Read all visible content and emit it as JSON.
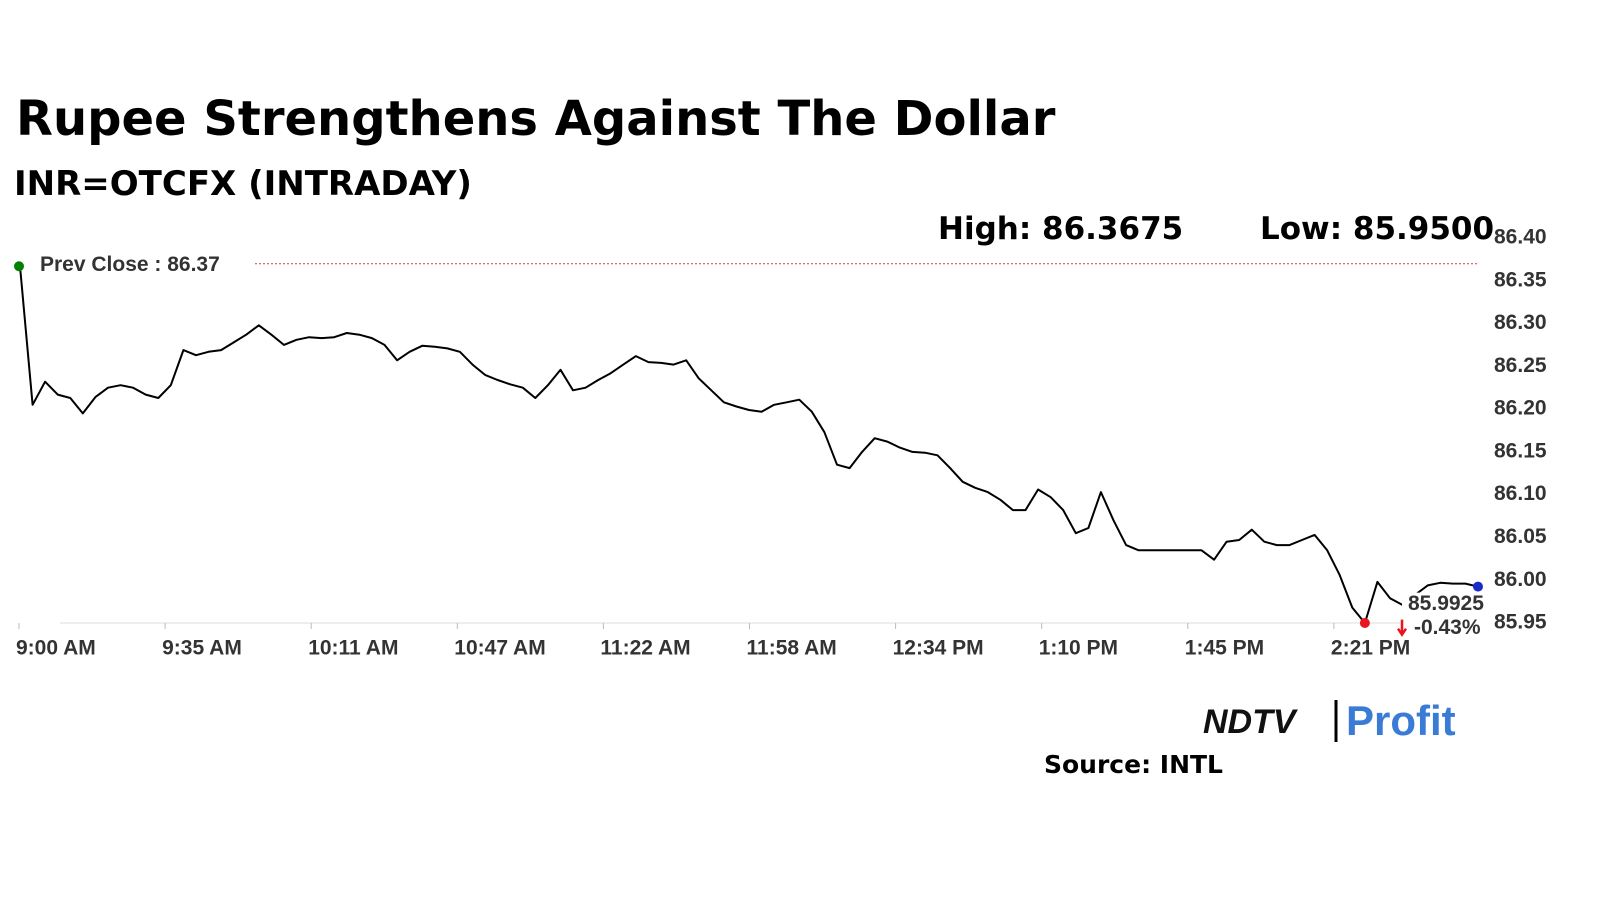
{
  "chart_data": {
    "type": "line",
    "title": "Rupee Strengthens Against The Dollar",
    "subtitle": "INR=OTCFX (INTRADAY)",
    "high_label": "High: 86.3675",
    "low_label": "Low: 85.9500",
    "prev_close": {
      "value": 86.37,
      "label": "Prev Close : 86.37"
    },
    "last_label": "85.9925",
    "change_label": "-0.43%",
    "source": "Source: INTL",
    "logo": {
      "left": "NDTV",
      "right": "Profit"
    },
    "xticks": [
      "9:00 AM",
      "9:35 AM",
      "10:11 AM",
      "10:47 AM",
      "11:22 AM",
      "11:58 AM",
      "12:34 PM",
      "1:10 PM",
      "1:45 PM",
      "2:21 PM"
    ],
    "series": [
      {
        "color": "#000000",
        "values": [
          86.367,
          86.205,
          86.232,
          86.217,
          86.213,
          86.195,
          86.214,
          86.225,
          86.228,
          86.225,
          86.217,
          86.213,
          86.228,
          86.269,
          86.263,
          86.267,
          86.269,
          86.278,
          86.287,
          86.298,
          86.287,
          86.275,
          86.281,
          86.284,
          86.283,
          86.284,
          86.289,
          86.287,
          86.283,
          86.275,
          86.257,
          86.267,
          86.274,
          86.273,
          86.271,
          86.267,
          86.252,
          86.24,
          86.234,
          86.229,
          86.225,
          86.213,
          86.228,
          86.246,
          86.222,
          86.225,
          86.234,
          86.242,
          86.252,
          86.262,
          86.255,
          86.254,
          86.252,
          86.257,
          86.236,
          86.222,
          86.208,
          86.203,
          86.199,
          86.197,
          86.205,
          86.208,
          86.211,
          86.197,
          86.173,
          86.135,
          86.131,
          86.15,
          86.166,
          86.162,
          86.155,
          86.15,
          86.149,
          86.146,
          86.131,
          86.115,
          86.108,
          86.103,
          86.094,
          86.082,
          86.082,
          86.106,
          86.097,
          86.082,
          86.055,
          86.061,
          86.103,
          86.07,
          86.041,
          86.035,
          86.035,
          86.035,
          86.035,
          86.035,
          86.035,
          86.024,
          86.045,
          86.047,
          86.059,
          86.045,
          86.041,
          86.041,
          86.047,
          86.053,
          86.035,
          86.006,
          85.968,
          85.95,
          85.998,
          85.979,
          85.971,
          85.983,
          85.994,
          85.997,
          85.996,
          85.996,
          85.9925
        ]
      }
    ],
    "ylim": [
      85.95,
      86.4
    ],
    "yticks": [
      85.95,
      {
        "value": 86,
        "label": "86.00"
      },
      86.05,
      {
        "value": 86.1,
        "label": "86.10"
      },
      86.15,
      {
        "value": 86.2,
        "label": "86.20"
      },
      86.25,
      {
        "value": 86.3,
        "label": "86.30"
      },
      86.35,
      {
        "value": 86.4,
        "label": "86.40"
      }
    ],
    "grid": false
  }
}
